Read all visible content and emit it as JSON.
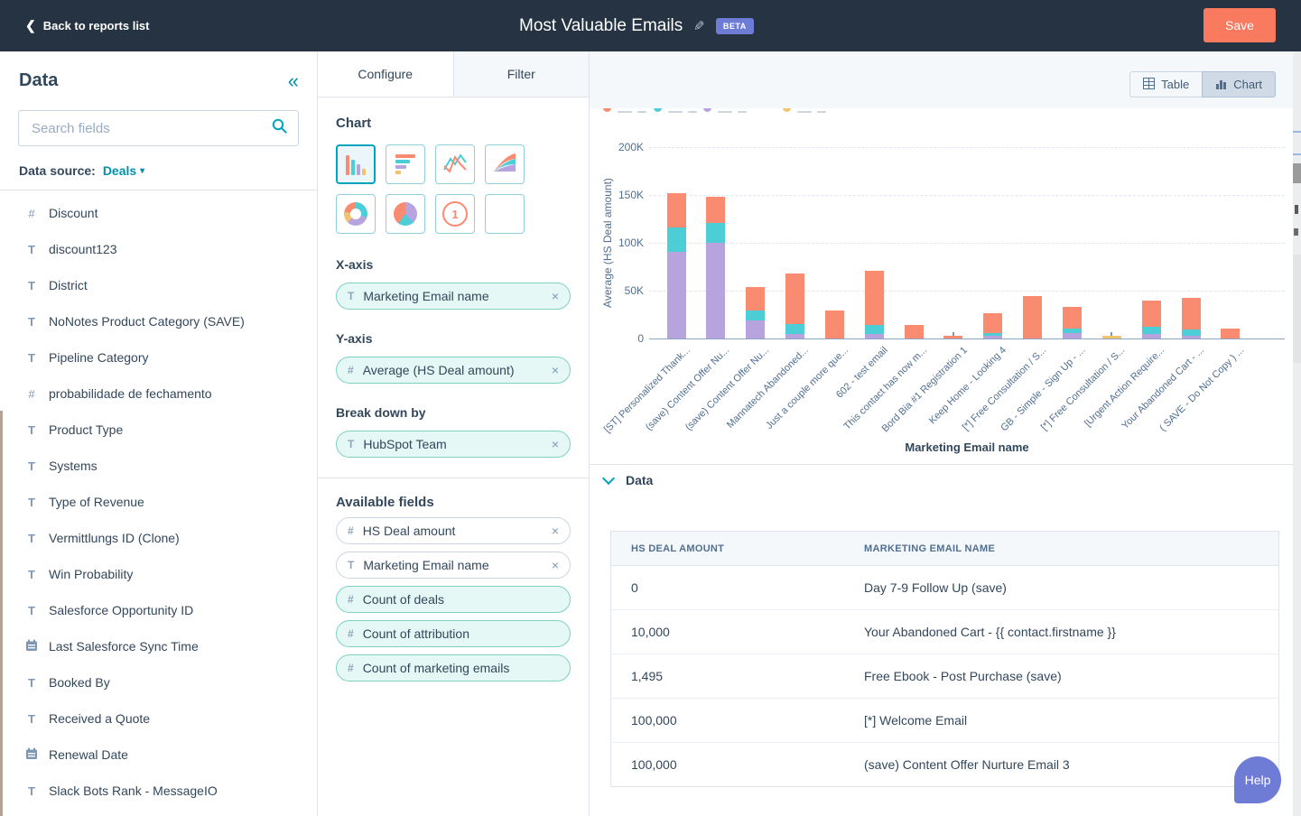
{
  "topbar": {
    "back_label": "Back to reports list",
    "title": "Most Valuable Emails",
    "beta_label": "BETA",
    "save_label": "Save"
  },
  "sidebar": {
    "title": "Data",
    "search_placeholder": "Search fields",
    "data_source_label": "Data source:",
    "data_source_value": "Deals",
    "fields": [
      {
        "type": "number",
        "label": "Discount"
      },
      {
        "type": "text",
        "label": "discount123"
      },
      {
        "type": "text",
        "label": "District"
      },
      {
        "type": "text",
        "label": "NoNotes Product Category (SAVE)"
      },
      {
        "type": "text",
        "label": "Pipeline Category"
      },
      {
        "type": "number",
        "label": "probabilidade de fechamento"
      },
      {
        "type": "text",
        "label": "Product Type"
      },
      {
        "type": "text",
        "label": "Systems"
      },
      {
        "type": "text",
        "label": "Type of Revenue"
      },
      {
        "type": "text",
        "label": "Vermittlungs ID (Clone)"
      },
      {
        "type": "text",
        "label": "Win Probability"
      },
      {
        "type": "text",
        "label": "Salesforce Opportunity ID"
      },
      {
        "type": "date",
        "label": "Last Salesforce Sync Time"
      },
      {
        "type": "text",
        "label": "Booked By"
      },
      {
        "type": "text",
        "label": "Received a Quote"
      },
      {
        "type": "date",
        "label": "Renewal Date"
      },
      {
        "type": "text",
        "label": "Slack Bots Rank - MessageIO"
      }
    ]
  },
  "config": {
    "tabs": [
      {
        "label": "Configure"
      },
      {
        "label": "Filter"
      }
    ],
    "active_tab": "Configure",
    "chart_section_label": "Chart",
    "chart_types": [
      "column",
      "horizontal-bar",
      "line",
      "area",
      "donut",
      "pie",
      "single-value",
      "pivot-table"
    ],
    "selected_chart_type": "column",
    "x_axis_label": "X-axis",
    "x_axis_pill": {
      "type": "text",
      "label": "Marketing Email name"
    },
    "y_axis_label": "Y-axis",
    "y_axis_pill": {
      "type": "number",
      "label": "Average (HS Deal amount)"
    },
    "breakdown_label": "Break down by",
    "breakdown_pill": {
      "type": "text",
      "label": "HubSpot Team"
    },
    "available_fields_label": "Available fields",
    "available_fields": [
      {
        "type": "number",
        "label": "HS Deal amount",
        "removable": true,
        "variant": "plain"
      },
      {
        "type": "text",
        "label": "Marketing Email name",
        "removable": true,
        "variant": "plain"
      },
      {
        "type": "number",
        "label": "Count of deals",
        "removable": false,
        "variant": "mint"
      },
      {
        "type": "number",
        "label": "Count of attribution",
        "removable": false,
        "variant": "mint"
      },
      {
        "type": "number",
        "label": "Count of marketing emails",
        "removable": false,
        "variant": "mint"
      }
    ]
  },
  "view_toggle": {
    "table_label": "Table",
    "chart_label": "Chart",
    "active": "Chart"
  },
  "chart_data": {
    "type": "bar",
    "stacked": true,
    "xlabel": "Marketing Email name",
    "ylabel": "Average (HS Deal amount)",
    "ylim": [
      0,
      200000
    ],
    "grid": "dashed horizontal",
    "legend_position": "top (clipped out of view by scroll)",
    "yticks": [
      {
        "label": "0",
        "value": 0
      },
      {
        "label": "50K",
        "value": 50000
      },
      {
        "label": "100K",
        "value": 100000
      },
      {
        "label": "150K",
        "value": 150000
      },
      {
        "label": "200K",
        "value": 200000
      }
    ],
    "categories": [
      "[ST] Personalized Thank...",
      "(save) Content Offer Nu...",
      "(save) Content Offer Nu...",
      "Mannatech Abandoned...",
      "Just a couple more que...",
      "602 - test email",
      "This contact has now m...",
      "Bord Bia #1 Registration 1",
      "Keep Home - Looking 4",
      "[*] Free Consultation / S...",
      "GB - Simple - Sign Up - ...",
      "[*] Free Consultation / S...",
      "[Urgent Action Require...",
      "Your Abandoned Cart - ...",
      "( SAVE - Do Not Copy ) ..."
    ],
    "series": [
      {
        "name": "breakdown-series-1-purple",
        "color": "#b7a4df",
        "values": [
          91000,
          100000,
          19000,
          5000,
          0,
          5000,
          0,
          0,
          3000,
          0,
          6000,
          0,
          5000,
          3000,
          0
        ]
      },
      {
        "name": "breakdown-series-2-teal",
        "color": "#4dcdd5",
        "values": [
          25000,
          21000,
          10000,
          10000,
          0,
          9000,
          0,
          0,
          3000,
          0,
          4000,
          0,
          7000,
          6000,
          0
        ]
      },
      {
        "name": "breakdown-series-3-salmon",
        "color": "#f98b70",
        "values": [
          36000,
          27000,
          25000,
          53000,
          29000,
          57000,
          14000,
          2500,
          20000,
          44000,
          23000,
          0,
          28000,
          33000,
          10000
        ]
      },
      {
        "name": "breakdown-series-4-yellow",
        "color": "#f2c36b",
        "values": [
          0,
          0,
          0,
          0,
          0,
          0,
          0,
          0,
          0,
          0,
          0,
          2500,
          0,
          0,
          0
        ]
      }
    ],
    "tick_markers": [
      {
        "category_index": 7,
        "approx_value": 7000
      },
      {
        "category_index": 11,
        "approx_value": 7000
      }
    ],
    "legend_dot_colors": [
      "#f98b70",
      "#4dcdd5",
      "#b7a4df",
      "#f2c36b"
    ]
  },
  "data_section": {
    "title": "Data",
    "table": {
      "headers": [
        "HS DEAL AMOUNT",
        "MARKETING EMAIL NAME"
      ],
      "rows": [
        [
          "0",
          "Day 7-9 Follow Up (save)"
        ],
        [
          "10,000",
          "Your Abandoned Cart - {{ contact.firstname }}"
        ],
        [
          "1,495",
          "Free Ebook - Post Purchase (save)"
        ],
        [
          "100,000",
          "[*] Welcome Email"
        ],
        [
          "100,000",
          "(save) Content Offer Nurture Email 3"
        ]
      ]
    }
  },
  "help": {
    "label": "Help"
  },
  "colors": {
    "topbar_bg": "#253342",
    "accent_teal": "#00a4bd",
    "link_teal": "#0091ae",
    "save_orange": "#fa7a5f",
    "beta_indigo": "#6e7cd6",
    "text_primary": "#33475b",
    "text_secondary": "#516f90",
    "border": "#cbd6e2",
    "panel_bg": "#f5f8fa"
  }
}
